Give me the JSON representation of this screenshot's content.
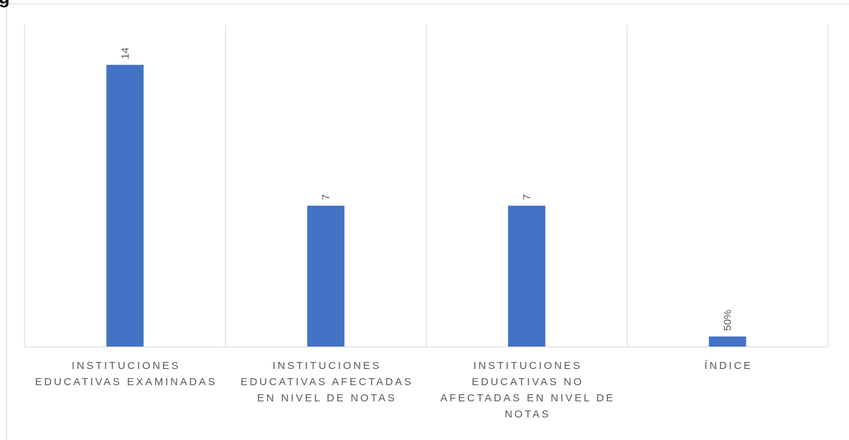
{
  "chart_data": {
    "type": "bar",
    "title": "g",
    "categories": [
      "INSTITUCIONES EDUCATIVAS EXAMINADAS",
      "INSTITUCIONES EDUCATIVAS AFECTADAS EN NIVEL DE NOTAS",
      "INSTITUCIONES EDUCATIVAS NO AFECTADAS EN NIVEL DE NOTAS",
      "ÍNDICE"
    ],
    "values": [
      14,
      7,
      7,
      0.5
    ],
    "value_labels": [
      "14",
      "7",
      "7",
      "50%"
    ],
    "color": "#4472c4",
    "ylim": [
      0,
      16
    ],
    "yticks": [],
    "grid": false
  }
}
